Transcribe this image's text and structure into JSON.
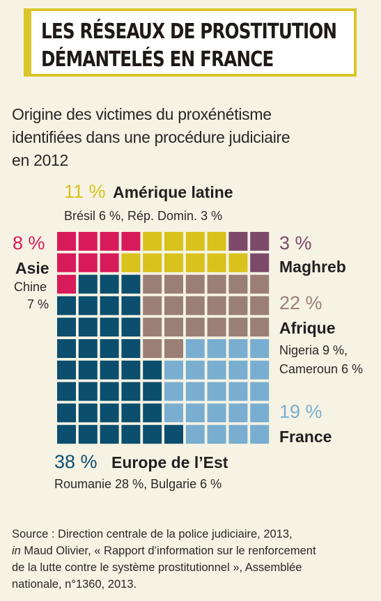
{
  "header": {
    "title_line1": "LES RÉSEAUX DE PROSTITUTION",
    "title_line2": "DÉMANTELÉS EN FRANCE"
  },
  "subtitle": {
    "line1": "Origine des victimes du proxénétisme",
    "line2": "identifiées dans une procédure judiciaire",
    "line3": "en 2012"
  },
  "chart_data": {
    "type": "waffle",
    "title": "Origine des victimes du proxénétisme identifiées dans une procédure judiciaire en 2012",
    "unit": "%",
    "grid": {
      "rows": 10,
      "cols": 10
    },
    "series": [
      {
        "name": "Amérique latine",
        "value": 11,
        "label": "11 %",
        "details": "Brésil 6 %, Rép. Domin. 3 %",
        "color": "#d9c21c"
      },
      {
        "name": "Asie",
        "value": 8,
        "label": "8 %",
        "details": "Chine 7 %",
        "color": "#d81b5a"
      },
      {
        "name": "Maghreb",
        "value": 3,
        "label": "3 %",
        "details": "",
        "color": "#7d4a6b"
      },
      {
        "name": "Afrique",
        "value": 22,
        "label": "22 %",
        "details": "Nigeria 9 %, Cameroun 6 %",
        "color": "#9b7f76"
      },
      {
        "name": "France",
        "value": 19,
        "label": "19 %",
        "details": "",
        "color": "#79aed0"
      },
      {
        "name": "Europe de l’Est",
        "value": 38,
        "label": "38 %",
        "details": "Roumanie 28 %, Bulgarie 6 %",
        "color": "#0b4e6e"
      }
    ]
  },
  "labels": {
    "amerique": {
      "pct": "11 %",
      "region": "Amérique latine",
      "detail": "Brésil 6 %, Rép. Domin. 3 %"
    },
    "asie": {
      "pct": "8 %",
      "region": "Asie",
      "detail1": "Chine",
      "detail2": "7 %"
    },
    "maghreb": {
      "pct": "3 %",
      "region": "Maghreb"
    },
    "afrique": {
      "pct": "22 %",
      "region": "Afrique",
      "detail1": "Nigeria 9 %,",
      "detail2": "Cameroun 6 %"
    },
    "france": {
      "pct": "19 %",
      "region": "France"
    },
    "europe": {
      "pct": "38 %",
      "region": "Europe de l’Est",
      "detail": "Roumanie 28 %, Bulgarie 6 %"
    }
  },
  "source": {
    "line1": "Source : Direction centrale de la police judiciaire, 2013,",
    "line2_in": "in",
    "line2": " Maud Olivier,  « Rapport d’information sur le renforcement",
    "line3": "de la lutte contre le système prostitutionnel », Assemblée",
    "line4": "nationale, n°1360, 2013."
  },
  "colors": {
    "asie": "#d81b5a",
    "amerique": "#d9c21c",
    "maghreb": "#7d4a6b",
    "afrique": "#9b7f76",
    "france": "#79aed0",
    "europe": "#0b4e6e",
    "title_border": "#d8c62a"
  }
}
